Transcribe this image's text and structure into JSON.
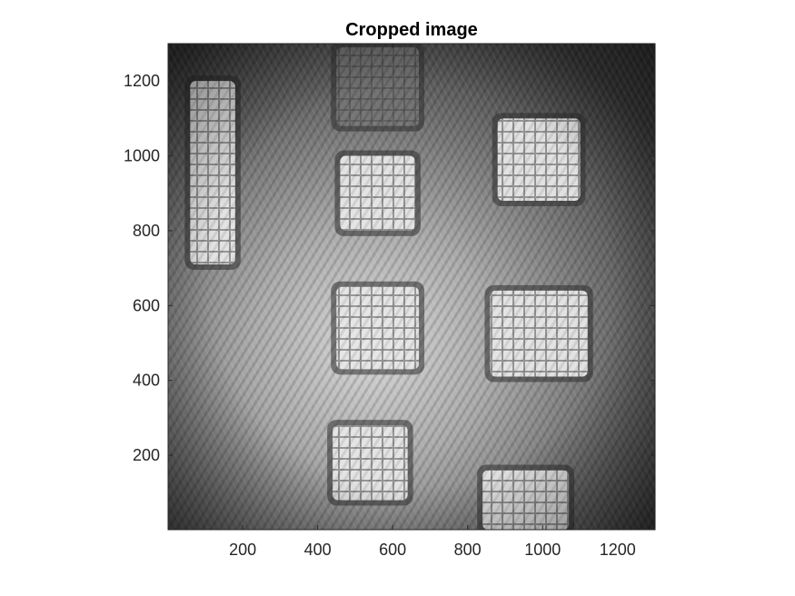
{
  "title": "Cropped image",
  "axes": {
    "x": {
      "range": [
        1,
        1300
      ],
      "ticks": [
        200,
        400,
        600,
        800,
        1000,
        1200
      ],
      "tick_labels": [
        "200",
        "400",
        "600",
        "800",
        "1000",
        "1200"
      ]
    },
    "y": {
      "range": [
        1,
        1300
      ],
      "direction": "bottom-to-top",
      "ticks": [
        200,
        400,
        600,
        800,
        1000,
        1200
      ],
      "tick_labels": [
        "200",
        "400",
        "600",
        "800",
        "1000",
        "1200"
      ]
    }
  },
  "image": {
    "colormap": "grayscale",
    "content": "interference fringe pattern",
    "features": [
      {
        "name": "vertical-bar",
        "x": [
          60,
          180
        ],
        "y": [
          710,
          1200
        ]
      },
      {
        "name": "square-top-faint",
        "x": [
          450,
          670
        ],
        "y": [
          1080,
          1290
        ]
      },
      {
        "name": "square-upper-center",
        "x": [
          460,
          660
        ],
        "y": [
          800,
          1000
        ]
      },
      {
        "name": "square-upper-right",
        "x": [
          880,
          1100
        ],
        "y": [
          880,
          1100
        ]
      },
      {
        "name": "square-middle-center",
        "x": [
          450,
          670
        ],
        "y": [
          430,
          650
        ]
      },
      {
        "name": "square-middle-right",
        "x": [
          860,
          1120
        ],
        "y": [
          410,
          640
        ]
      },
      {
        "name": "square-lower-center",
        "x": [
          440,
          640
        ],
        "y": [
          80,
          280
        ]
      },
      {
        "name": "square-bottom-right",
        "x": [
          840,
          1070
        ],
        "y": [
          1,
          160
        ]
      }
    ]
  }
}
